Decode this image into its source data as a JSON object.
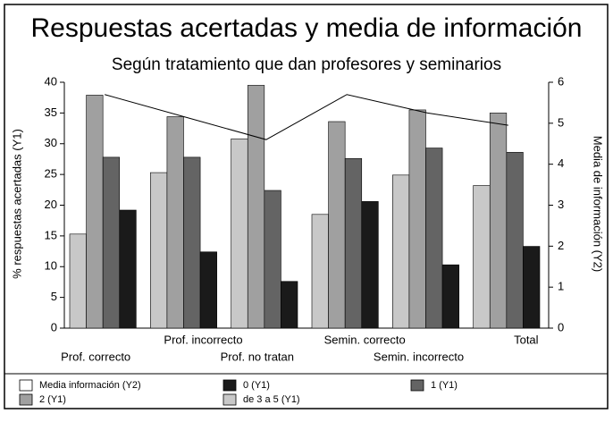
{
  "chart_data": {
    "type": "bar",
    "title": "Respuestas acertadas y media de información",
    "subtitle": "Según tratamiento que dan profesores y seminarios",
    "y_label": "% respuestas acertadas (Y1)",
    "y2_label": "Media de información (Y2)",
    "categories": [
      "Prof. correcto",
      "Prof. incorrecto",
      "Prof. no tratan",
      "Semin. correcto",
      "Semin. incorrecto",
      "Total"
    ],
    "series": [
      {
        "name": "Media información (Y2)",
        "type": "line",
        "axis": "y2",
        "color": "#ffffff",
        "values": [
          5.7,
          5.15,
          4.6,
          5.7,
          5.25,
          4.95
        ]
      },
      {
        "name": "0 (Y1)",
        "color": "#1a1a1a",
        "values": [
          19.2,
          12.4,
          7.6,
          20.6,
          10.3,
          13.3
        ]
      },
      {
        "name": "1 (Y1)",
        "color": "#646464",
        "values": [
          27.8,
          27.8,
          22.4,
          27.6,
          29.3,
          28.6
        ]
      },
      {
        "name": "2 (Y1)",
        "color": "#a0a0a0",
        "values": [
          37.9,
          34.4,
          39.5,
          33.6,
          35.5,
          35
        ]
      },
      {
        "name": "de 3 a 5 (Y1)",
        "color": "#c8c8c8",
        "values": [
          15.3,
          25.3,
          30.8,
          18.5,
          24.9,
          23.2
        ]
      }
    ],
    "ylim": [
      0,
      40
    ],
    "yticks": [
      0,
      5,
      10,
      15,
      20,
      25,
      30,
      35,
      40
    ],
    "y2lim": [
      0,
      6
    ],
    "y2ticks": [
      0,
      1,
      2,
      3,
      4,
      5,
      6
    ]
  }
}
